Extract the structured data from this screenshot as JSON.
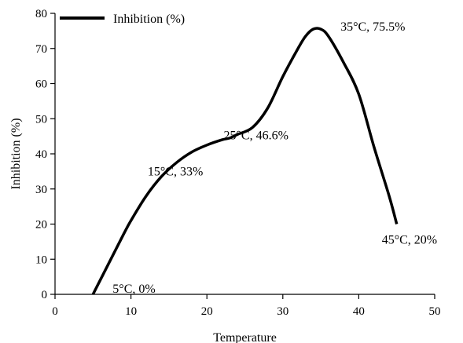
{
  "chart_data": {
    "type": "line",
    "xlabel": "Temperature",
    "ylabel": "Inhibition (%)",
    "xlim": [
      0,
      50
    ],
    "ylim": [
      0,
      80
    ],
    "x_ticks": [
      0,
      10,
      20,
      30,
      40,
      50
    ],
    "y_ticks": [
      0,
      10,
      20,
      30,
      40,
      50,
      60,
      70,
      80
    ],
    "grid": false,
    "legend_position": "top-left",
    "series": [
      {
        "name": "Inhibition (%)",
        "color": "#000000",
        "x": [
          5,
          7,
          9,
          10,
          12,
          14,
          16,
          18,
          20,
          22,
          23,
          24,
          26,
          28,
          30,
          32,
          33,
          34,
          35,
          36,
          38,
          40,
          42,
          44,
          45
        ],
        "y": [
          0,
          8.5,
          17,
          21,
          28,
          33.5,
          37.5,
          40.5,
          42.5,
          44,
          44.5,
          45.5,
          47.5,
          53,
          62,
          70,
          73.5,
          75.5,
          75.5,
          73.5,
          66,
          57,
          42,
          28,
          20
        ]
      }
    ],
    "annotations": [
      {
        "text": "5°C, 0%",
        "x": 5,
        "y": 0
      },
      {
        "text": "15°C, 33%",
        "x": 15,
        "y": 33
      },
      {
        "text": "25°C, 46.6%",
        "x": 25,
        "y": 46.6
      },
      {
        "text": "35°C, 75.5%",
        "x": 35,
        "y": 75.5
      },
      {
        "text": "45°C, 20%",
        "x": 45,
        "y": 20
      }
    ]
  }
}
